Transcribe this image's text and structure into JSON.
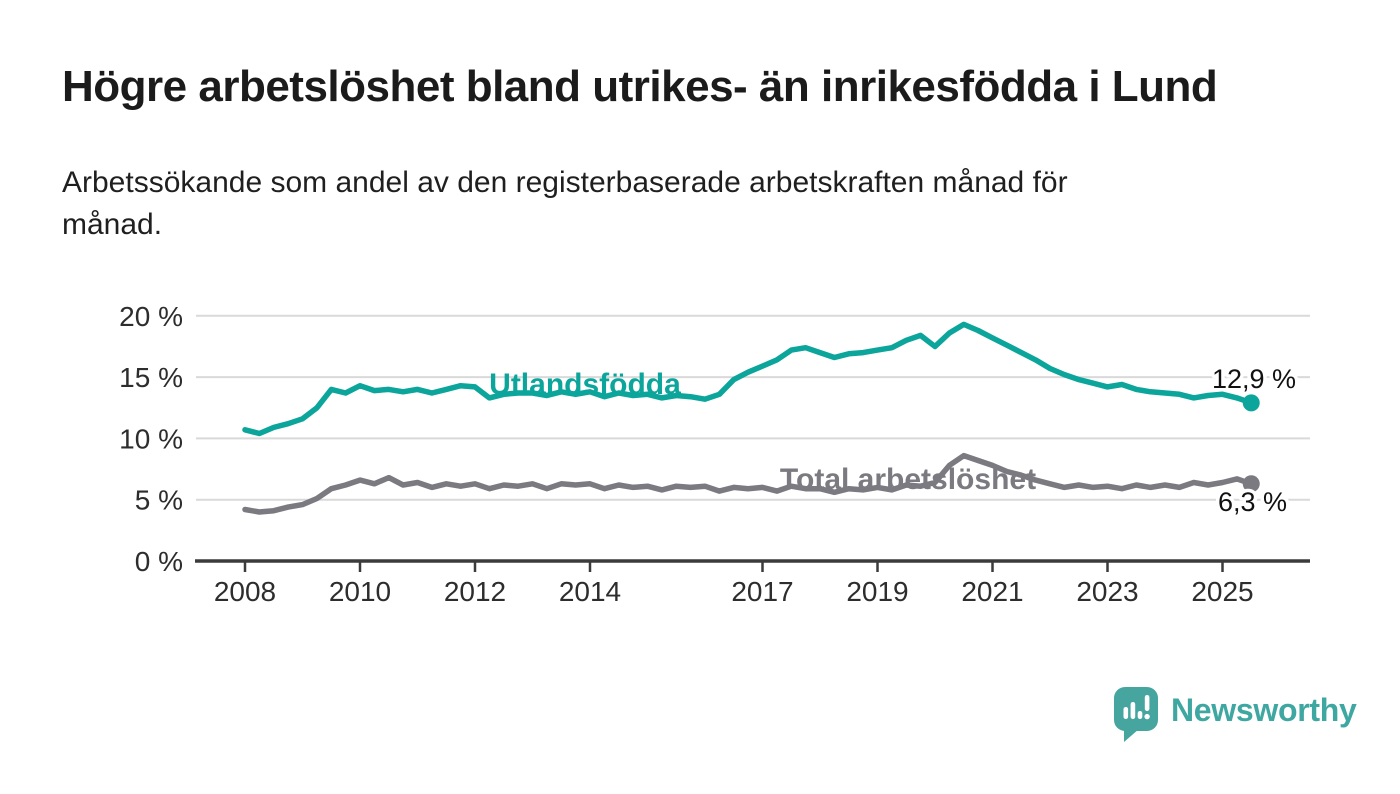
{
  "header": {
    "title": "Högre arbetslöshet bland utrikes- än inrikesfödda i Lund",
    "subtitle_lines": [
      "Arbetssökande som andel av den registerbaserade arbetskraften månad för",
      "månad."
    ]
  },
  "chart_data": {
    "type": "line",
    "title": "Högre arbetslöshet bland utrikes- än inrikesfödda i Lund",
    "subtitle": "Arbetssökande som andel av den registerbaserade arbetskraften månad för månad.",
    "x_unit": "year",
    "x_start": 2008.0,
    "x_step": 0.25,
    "xlim": [
      2007.1,
      2026.0
    ],
    "ylim": [
      0,
      21
    ],
    "grid": "horizontal",
    "legend": "inline-labels",
    "x_ticks": [
      2008,
      2010,
      2012,
      2014,
      2017,
      2019,
      2021,
      2023,
      2025
    ],
    "x_tick_labels": [
      "2008",
      "2010",
      "2012",
      "2014",
      "2017",
      "2019",
      "2021",
      "2023",
      "2025"
    ],
    "y_ticks": [
      0,
      5,
      10,
      15,
      20
    ],
    "y_tick_labels": [
      "0 %",
      "5 %",
      "10 %",
      "15 %",
      "20 %"
    ],
    "series": [
      {
        "name": "Utlandsfödda",
        "slug": "utlandsfodda",
        "color": "#0ca59b",
        "end_label": "12,9 %",
        "end_value": 12.9,
        "values": [
          10.7,
          10.4,
          10.9,
          11.2,
          11.6,
          12.5,
          14.0,
          13.7,
          14.3,
          13.9,
          14.0,
          13.8,
          14.0,
          13.7,
          14.0,
          14.3,
          14.2,
          13.3,
          13.6,
          13.7,
          13.7,
          13.5,
          13.8,
          13.6,
          13.8,
          13.4,
          13.7,
          13.5,
          13.6,
          13.3,
          13.5,
          13.4,
          13.2,
          13.6,
          14.8,
          15.4,
          15.9,
          16.4,
          17.2,
          17.4,
          17.0,
          16.6,
          16.9,
          17.0,
          17.2,
          17.4,
          18.0,
          18.4,
          17.5,
          18.6,
          19.3,
          18.8,
          18.2,
          17.6,
          17.0,
          16.4,
          15.7,
          15.2,
          14.8,
          14.5,
          14.2,
          14.4,
          14.0,
          13.8,
          13.7,
          13.6,
          13.3,
          13.5,
          13.6,
          13.3,
          12.9
        ]
      },
      {
        "name": "Total arbetslöshet",
        "slug": "total-arbetsloshet",
        "color": "#7a7a80",
        "end_label": "6,3 %",
        "end_value": 6.3,
        "values": [
          4.2,
          4.0,
          4.1,
          4.4,
          4.6,
          5.1,
          5.9,
          6.2,
          6.6,
          6.3,
          6.8,
          6.2,
          6.4,
          6.0,
          6.3,
          6.1,
          6.3,
          5.9,
          6.2,
          6.1,
          6.3,
          5.9,
          6.3,
          6.2,
          6.3,
          5.9,
          6.2,
          6.0,
          6.1,
          5.8,
          6.1,
          6.0,
          6.1,
          5.7,
          6.0,
          5.9,
          6.0,
          5.7,
          6.1,
          5.9,
          5.9,
          5.6,
          5.9,
          5.8,
          6.0,
          5.8,
          6.2,
          6.1,
          6.4,
          7.8,
          8.6,
          8.2,
          7.8,
          7.3,
          7.0,
          6.6,
          6.3,
          6.0,
          6.2,
          6.0,
          6.1,
          5.9,
          6.2,
          6.0,
          6.2,
          6.0,
          6.4,
          6.2,
          6.4,
          6.7,
          6.3
        ]
      }
    ],
    "style": {
      "grid_color": "#d9d9d9",
      "axis_color": "#3b3b3b",
      "tick_label_color": "#2d2d2d",
      "value_label_color": "#111111"
    }
  },
  "branding": {
    "logo_text": "Newsworthy",
    "logo_color": "#3fa7a1",
    "logo_icon": "speech-bubble-bar-chart-icon"
  }
}
